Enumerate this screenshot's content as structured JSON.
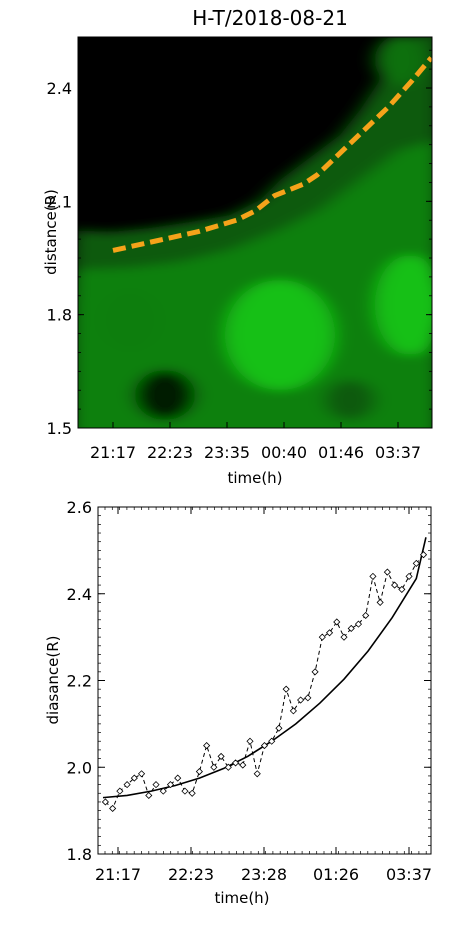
{
  "chart_data": [
    {
      "type": "heatmap",
      "title": "H-T/2018-08-21",
      "xlabel": "time(h)",
      "ylabel": "distance(R)",
      "x_tick_labels": [
        "21:17",
        "22:23",
        "23:35",
        "00:40",
        "01:46",
        "03:37"
      ],
      "y_tick_labels": [
        "1.5",
        "1.8",
        "2.1",
        "2.4"
      ],
      "ylim": [
        1.5,
        2.52
      ],
      "colormap": "black-to-green",
      "colors": {
        "background": "#000000",
        "intensity": "#00e000",
        "overlay": "#f5a31a"
      },
      "overlay_line": {
        "style": "dashed",
        "x_h": [
          0,
          0.9,
          1.8,
          2.6,
          3.0,
          3.4,
          4.0,
          4.3,
          4.8,
          5.3,
          5.8,
          6.3,
          6.7
        ],
        "y": [
          1.97,
          1.995,
          2.02,
          2.05,
          2.075,
          2.115,
          2.145,
          2.17,
          2.23,
          2.29,
          2.35,
          2.42,
          2.48
        ]
      }
    },
    {
      "type": "line",
      "xlabel": "time(h)",
      "ylabel": "diasance(R)",
      "x_tick_labels": [
        "21:17",
        "22:23",
        "23:28",
        "01:26",
        "03:37"
      ],
      "y_tick_labels": [
        "1.8",
        "2.0",
        "2.2",
        "2.4",
        "2.6"
      ],
      "ylim": [
        1.8,
        2.6
      ],
      "xlim_h": [
        0,
        7.0
      ],
      "series": [
        {
          "style": "dashed-with-diamond-markers",
          "x": [
            0.05,
            0.2,
            0.35,
            0.5,
            0.65,
            0.8,
            0.95,
            1.1,
            1.25,
            1.4,
            1.55,
            1.7,
            1.85,
            2.0,
            2.15,
            2.3,
            2.45,
            2.6,
            2.75,
            2.9,
            3.05,
            3.2,
            3.35,
            3.5,
            3.65,
            3.8,
            3.95,
            4.1,
            4.25,
            4.4,
            4.55,
            4.7,
            4.85,
            5.0,
            5.15,
            5.3,
            5.45,
            5.6,
            5.75,
            5.9,
            6.05,
            6.2,
            6.35,
            6.5,
            6.65
          ],
          "y": [
            1.92,
            1.905,
            1.945,
            1.96,
            1.975,
            1.985,
            1.935,
            1.96,
            1.945,
            1.96,
            1.975,
            1.945,
            1.94,
            1.99,
            2.05,
            2.0,
            2.025,
            2.0,
            2.01,
            2.005,
            2.06,
            1.985,
            2.05,
            2.06,
            2.09,
            2.18,
            2.13,
            2.155,
            2.16,
            2.22,
            2.3,
            2.31,
            2.335,
            2.3,
            2.32,
            2.33,
            2.35,
            2.44,
            2.38,
            2.45,
            2.42,
            2.41,
            2.44,
            2.47,
            2.49
          ]
        },
        {
          "style": "solid-fit",
          "x": [
            0,
            0.5,
            1.0,
            1.5,
            2.0,
            2.5,
            3.0,
            3.5,
            4.0,
            4.5,
            5.0,
            5.5,
            6.0,
            6.5,
            6.7
          ],
          "y": [
            1.93,
            1.935,
            1.945,
            1.958,
            1.975,
            1.997,
            2.025,
            2.06,
            2.1,
            2.148,
            2.203,
            2.268,
            2.345,
            2.435,
            2.53
          ]
        }
      ]
    }
  ]
}
